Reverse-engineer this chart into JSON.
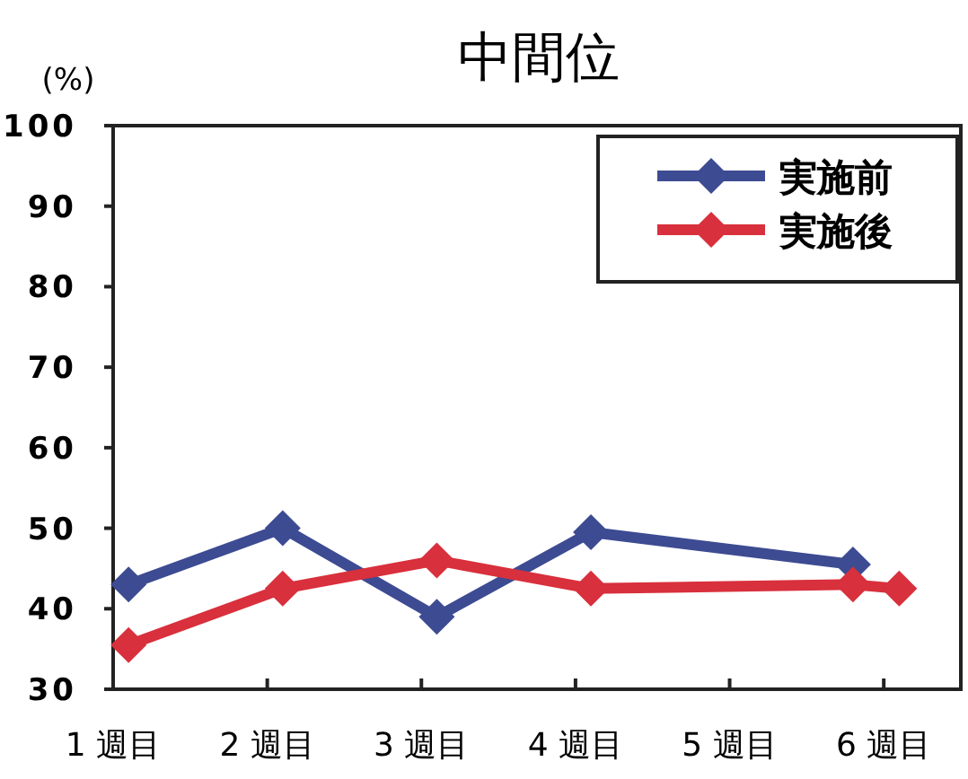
{
  "chart_data": {
    "type": "line",
    "title": "中間位",
    "ylabel": "(%)",
    "x": [
      1.1,
      2.1,
      3.1,
      4.1,
      5.8,
      6.1
    ],
    "xlim": [
      1,
      6.5
    ],
    "xticks": [
      {
        "value": 1,
        "label": "1 週目"
      },
      {
        "value": 2,
        "label": "2 週目"
      },
      {
        "value": 3,
        "label": "3 週目"
      },
      {
        "value": 4,
        "label": "4 週目"
      },
      {
        "value": 5,
        "label": "5 週目"
      },
      {
        "value": 6,
        "label": "6 週目"
      }
    ],
    "ylim": [
      30,
      100
    ],
    "yticks": [
      30,
      40,
      50,
      60,
      70,
      80,
      90,
      100
    ],
    "series": [
      {
        "name": "実施前",
        "color": "#3d4b92",
        "x": [
          1.1,
          2.1,
          3.1,
          4.1,
          5.8
        ],
        "values": [
          43,
          50,
          39,
          49.5,
          45.5
        ]
      },
      {
        "name": "実施後",
        "color": "#d8303c",
        "values": [
          35.5,
          42.5,
          46,
          42.5,
          43,
          42.5
        ]
      }
    ],
    "marker": "diamond",
    "line_style": "solid",
    "legend": "top right",
    "grid": false
  }
}
